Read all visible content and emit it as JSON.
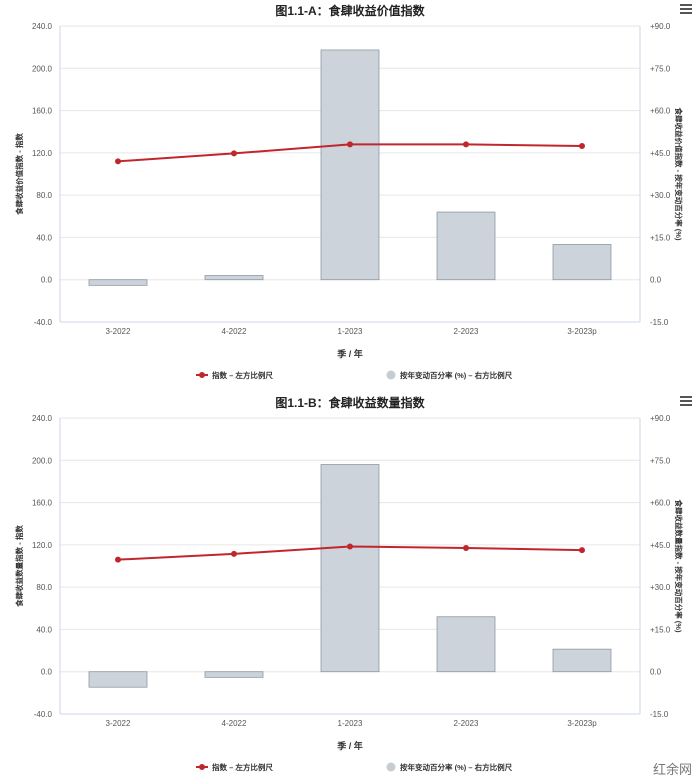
{
  "watermark": "红余网",
  "chart_data": [
    {
      "type": "bar",
      "title": "图1.1-A：食肆收益价值指数",
      "xlabel": "季 / 年",
      "ylabel_left": "食肆收益价值指数 - 指数",
      "ylabel_right": "食肆收益价值指数 - 按年变动百分率 (%)",
      "categories": [
        "3-2022",
        "4-2022",
        "1-2023",
        "2-2023",
        "3-2023p"
      ],
      "left_ticks": [
        "240.0",
        "200.0",
        "160.0",
        "120.0",
        "80.0",
        "40.0",
        "0.0",
        "-40.0"
      ],
      "right_ticks": [
        "+90.0",
        "+75.0",
        "+60.0",
        "+45.0",
        "+30.0",
        "+15.0",
        "0.0",
        "-15.0"
      ],
      "ylim_left": [
        -40,
        240
      ],
      "ylim_right": [
        -15,
        90
      ],
      "series": [
        {
          "name": "指数 – 左方比例尺",
          "type": "line",
          "axis": "left",
          "values": [
            112.0,
            119.5,
            128.0,
            128.0,
            126.5
          ]
        },
        {
          "name": "按年变动百分率 (%) – 右方比例尺",
          "type": "bar",
          "axis": "right",
          "values": [
            -2.0,
            1.5,
            81.5,
            24.0,
            12.5
          ]
        }
      ],
      "colors": {
        "line": "#c0272d",
        "bar_fill": "#ccd3da",
        "bar_stroke": "#8e99a3"
      }
    },
    {
      "type": "bar",
      "title": "图1.1-B：食肆收益数量指数",
      "xlabel": "季 / 年",
      "ylabel_left": "食肆收益数量指数 - 指数",
      "ylabel_right": "食肆收益数量指数 - 按年变动百分率 (%)",
      "categories": [
        "3-2022",
        "4-2022",
        "1-2023",
        "2-2023",
        "3-2023p"
      ],
      "left_ticks": [
        "240.0",
        "200.0",
        "160.0",
        "120.0",
        "80.0",
        "40.0",
        "0.0",
        "-40.0"
      ],
      "right_ticks": [
        "+90.0",
        "+75.0",
        "+60.0",
        "+45.0",
        "+30.0",
        "+15.0",
        "0.0",
        "-15.0"
      ],
      "ylim_left": [
        -40,
        240
      ],
      "ylim_right": [
        -15,
        90
      ],
      "series": [
        {
          "name": "指数 – 左方比例尺",
          "type": "line",
          "axis": "left",
          "values": [
            106.0,
            111.5,
            118.5,
            117.0,
            115.0
          ]
        },
        {
          "name": "按年变动百分率 (%) – 右方比例尺",
          "type": "bar",
          "axis": "right",
          "values": [
            -5.5,
            -2.0,
            73.5,
            19.5,
            8.0
          ]
        }
      ],
      "colors": {
        "line": "#c0272d",
        "bar_fill": "#ccd3da",
        "bar_stroke": "#8e99a3"
      }
    }
  ]
}
